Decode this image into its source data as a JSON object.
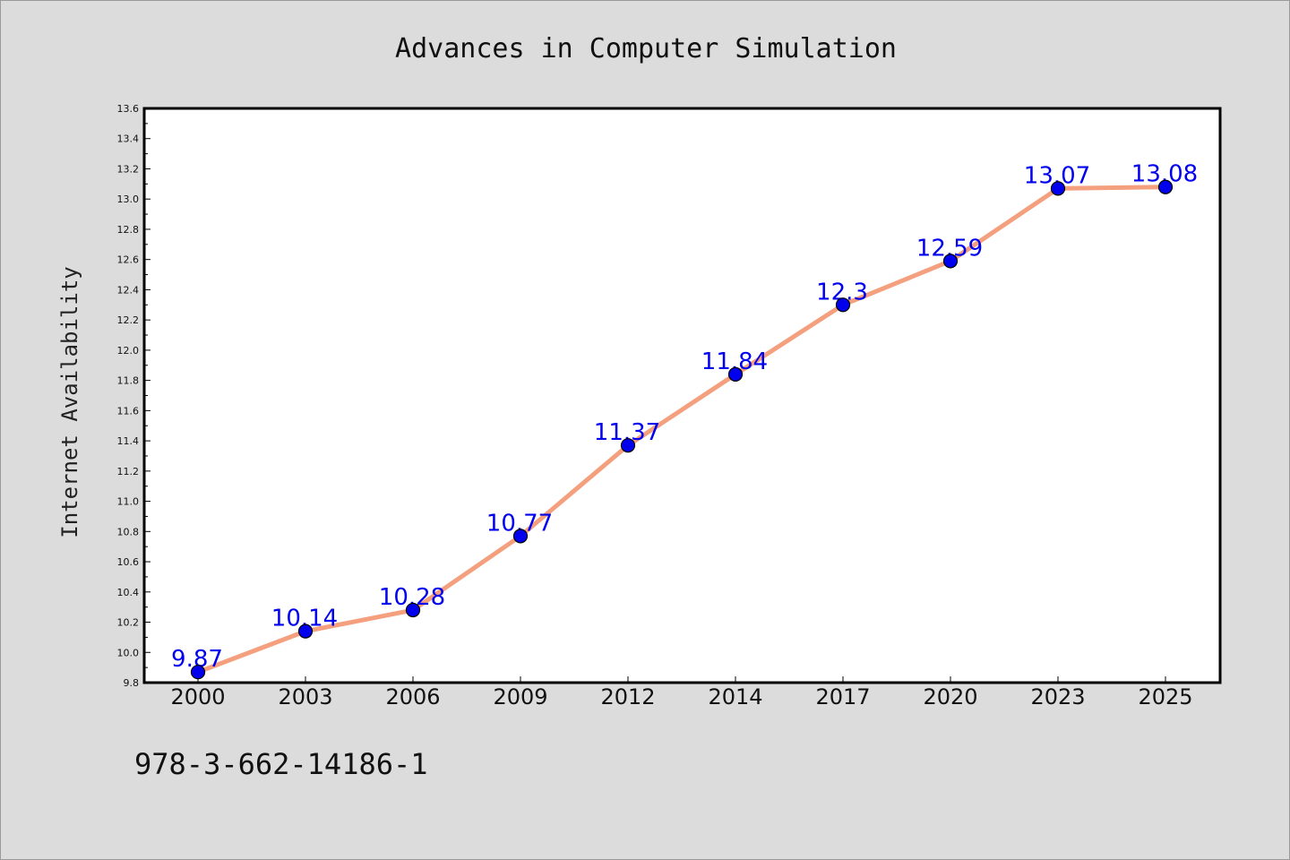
{
  "chart_data": {
    "type": "line",
    "title": "Advances in Computer Simulation",
    "xlabel": "",
    "ylabel": "Internet Availability",
    "categories": [
      "2000",
      "2003",
      "2006",
      "2009",
      "2012",
      "2014",
      "2017",
      "2020",
      "2023",
      "2025"
    ],
    "series": [
      {
        "values": [
          9.87,
          10.14,
          10.28,
          10.77,
          11.37,
          11.84,
          12.3,
          12.59,
          13.07,
          13.08
        ],
        "data_labels": [
          "9.87",
          "10.14",
          "10.28",
          "10.77",
          "11.37",
          "11.84",
          "12.3",
          "12.59",
          "13.07",
          "13.08"
        ],
        "line_color": "#f4a07e",
        "marker_color": "#0000ee"
      }
    ],
    "ylim": [
      9.8,
      13.6
    ],
    "yticks": [
      "9.8",
      "10.0",
      "10.2",
      "10.4",
      "10.6",
      "10.8",
      "11.0",
      "11.2",
      "11.4",
      "11.6",
      "11.8",
      "12.0",
      "12.2",
      "12.4",
      "12.6",
      "12.8",
      "13.0",
      "13.2",
      "13.4",
      "13.6"
    ],
    "grid": false,
    "legend": "none"
  },
  "footer": {
    "isbn": "978-3-662-14186-1"
  },
  "colors": {
    "background": "#dcdcdc",
    "plot_background": "#ffffff",
    "line": "#f4a07e",
    "marker": "#0000ee",
    "data_label": "#0000ee"
  }
}
